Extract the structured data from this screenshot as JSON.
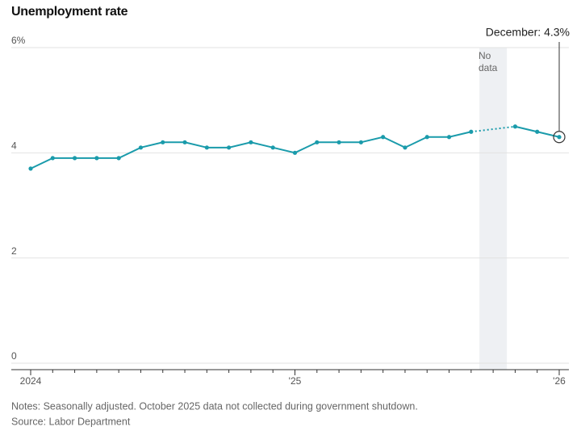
{
  "chart_data": {
    "type": "line",
    "title": "Unemployment rate",
    "categories": [
      "2024",
      null,
      null,
      null,
      null,
      null,
      null,
      null,
      null,
      null,
      null,
      null,
      "'25",
      null,
      null,
      null,
      null,
      null,
      null,
      null,
      null,
      null,
      null,
      null,
      "'26"
    ],
    "series": [
      {
        "name": "Unemployment rate",
        "color": "#1a9bab",
        "values": [
          3.7,
          3.9,
          3.9,
          3.9,
          3.9,
          4.1,
          4.2,
          4.2,
          4.1,
          4.1,
          4.2,
          4.1,
          4.0,
          4.2,
          4.2,
          4.2,
          4.3,
          4.1,
          4.3,
          4.3,
          4.4,
          null,
          4.5,
          4.4,
          4.3
        ]
      }
    ],
    "ylim": [
      0,
      6
    ],
    "yticks": [
      0,
      2,
      4,
      {
        "value": 6,
        "label": "6%"
      }
    ],
    "grid": true,
    "shaded_region": {
      "index": 21,
      "label": "No data"
    },
    "annotation": {
      "index": 24,
      "text": "December: 4.3%"
    },
    "notes": "Notes: Seasonally adjusted. October 2025 data not collected during government shutdown.",
    "source": "Source: Labor Department"
  }
}
